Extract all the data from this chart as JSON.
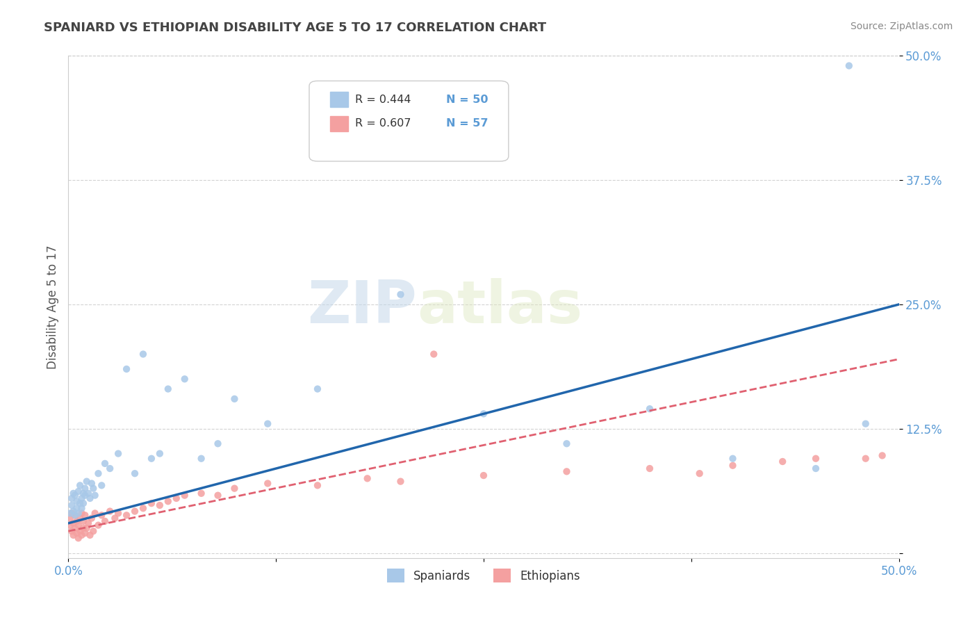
{
  "title": "SPANIARD VS ETHIOPIAN DISABILITY AGE 5 TO 17 CORRELATION CHART",
  "source": "Source: ZipAtlas.com",
  "ylabel": "Disability Age 5 to 17",
  "xlim": [
    0.0,
    0.5
  ],
  "ylim": [
    -0.005,
    0.5
  ],
  "xticks": [
    0.0,
    0.125,
    0.25,
    0.375,
    0.5
  ],
  "xticklabels": [
    "0.0%",
    "",
    "",
    "",
    "50.0%"
  ],
  "yticks": [
    0.0,
    0.125,
    0.25,
    0.375,
    0.5
  ],
  "yticklabels": [
    "",
    "12.5%",
    "25.0%",
    "37.5%",
    "50.0%"
  ],
  "legend_r_spaniard": "R = 0.444",
  "legend_n_spaniard": "N = 50",
  "legend_r_ethiopian": "R = 0.607",
  "legend_n_ethiopian": "N = 57",
  "spaniard_color": "#a8c8e8",
  "ethiopian_color": "#f4a0a0",
  "spaniard_line_color": "#2166ac",
  "ethiopian_line_color": "#e06070",
  "background_color": "#ffffff",
  "watermark_zip": "ZIP",
  "watermark_atlas": "atlas",
  "spaniard_x": [
    0.001,
    0.002,
    0.002,
    0.003,
    0.003,
    0.004,
    0.004,
    0.005,
    0.005,
    0.006,
    0.006,
    0.007,
    0.007,
    0.008,
    0.008,
    0.009,
    0.009,
    0.01,
    0.01,
    0.011,
    0.012,
    0.013,
    0.014,
    0.015,
    0.016,
    0.018,
    0.02,
    0.022,
    0.025,
    0.03,
    0.035,
    0.04,
    0.045,
    0.05,
    0.055,
    0.06,
    0.07,
    0.08,
    0.09,
    0.1,
    0.12,
    0.15,
    0.2,
    0.25,
    0.3,
    0.35,
    0.4,
    0.45,
    0.47,
    0.48
  ],
  "spaniard_y": [
    0.04,
    0.048,
    0.055,
    0.042,
    0.06,
    0.038,
    0.058,
    0.045,
    0.052,
    0.04,
    0.062,
    0.05,
    0.068,
    0.045,
    0.055,
    0.06,
    0.05,
    0.065,
    0.058,
    0.072,
    0.06,
    0.055,
    0.07,
    0.065,
    0.058,
    0.08,
    0.068,
    0.09,
    0.085,
    0.1,
    0.185,
    0.08,
    0.2,
    0.095,
    0.1,
    0.165,
    0.175,
    0.095,
    0.11,
    0.155,
    0.13,
    0.165,
    0.26,
    0.14,
    0.11,
    0.145,
    0.095,
    0.085,
    0.49,
    0.13
  ],
  "ethiopian_x": [
    0.001,
    0.001,
    0.002,
    0.002,
    0.003,
    0.003,
    0.004,
    0.004,
    0.005,
    0.005,
    0.006,
    0.006,
    0.007,
    0.007,
    0.008,
    0.008,
    0.009,
    0.009,
    0.01,
    0.01,
    0.011,
    0.012,
    0.013,
    0.014,
    0.015,
    0.016,
    0.018,
    0.02,
    0.022,
    0.025,
    0.028,
    0.03,
    0.035,
    0.04,
    0.045,
    0.05,
    0.055,
    0.06,
    0.065,
    0.07,
    0.08,
    0.09,
    0.1,
    0.12,
    0.15,
    0.18,
    0.2,
    0.22,
    0.25,
    0.3,
    0.35,
    0.38,
    0.4,
    0.43,
    0.45,
    0.48,
    0.49
  ],
  "ethiopian_y": [
    0.028,
    0.035,
    0.022,
    0.04,
    0.018,
    0.03,
    0.025,
    0.038,
    0.02,
    0.032,
    0.015,
    0.028,
    0.022,
    0.035,
    0.018,
    0.04,
    0.025,
    0.032,
    0.02,
    0.038,
    0.025,
    0.03,
    0.018,
    0.035,
    0.022,
    0.04,
    0.028,
    0.038,
    0.032,
    0.042,
    0.035,
    0.04,
    0.038,
    0.042,
    0.045,
    0.05,
    0.048,
    0.052,
    0.055,
    0.058,
    0.06,
    0.058,
    0.065,
    0.07,
    0.068,
    0.075,
    0.072,
    0.2,
    0.078,
    0.082,
    0.085,
    0.08,
    0.088,
    0.092,
    0.095,
    0.095,
    0.098
  ],
  "spaniard_line_x0": 0.0,
  "spaniard_line_y0": 0.03,
  "spaniard_line_x1": 0.5,
  "spaniard_line_y1": 0.25,
  "ethiopian_line_x0": 0.0,
  "ethiopian_line_y0": 0.022,
  "ethiopian_line_x1": 0.5,
  "ethiopian_line_y1": 0.195
}
